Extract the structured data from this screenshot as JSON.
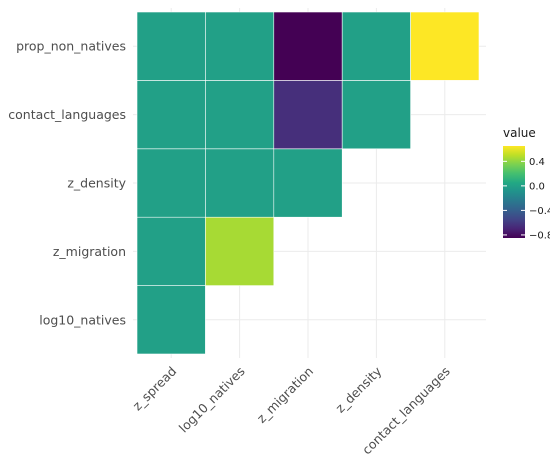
{
  "chart_data": {
    "type": "heatmap",
    "x_categories": [
      "z_spread",
      "log10_natives",
      "z_migration",
      "z_density",
      "contact_languages"
    ],
    "y_categories": [
      "log10_natives",
      "z_migration",
      "z_density",
      "contact_languages",
      "prop_non_natives"
    ],
    "cells": [
      {
        "x": "z_spread",
        "y": "log10_natives",
        "value": 0.0
      },
      {
        "x": "z_spread",
        "y": "z_migration",
        "value": 0.0
      },
      {
        "x": "log10_natives",
        "y": "z_migration",
        "value": 0.45
      },
      {
        "x": "z_spread",
        "y": "z_density",
        "value": 0.0
      },
      {
        "x": "log10_natives",
        "y": "z_density",
        "value": 0.0
      },
      {
        "x": "z_migration",
        "y": "z_density",
        "value": 0.0
      },
      {
        "x": "z_spread",
        "y": "contact_languages",
        "value": 0.0
      },
      {
        "x": "log10_natives",
        "y": "contact_languages",
        "value": 0.0
      },
      {
        "x": "z_migration",
        "y": "contact_languages",
        "value": -0.65
      },
      {
        "x": "z_density",
        "y": "contact_languages",
        "value": 0.0
      },
      {
        "x": "z_spread",
        "y": "prop_non_natives",
        "value": 0.0
      },
      {
        "x": "log10_natives",
        "y": "prop_non_natives",
        "value": 0.0
      },
      {
        "x": "z_migration",
        "y": "prop_non_natives",
        "value": -0.85
      },
      {
        "x": "z_density",
        "y": "prop_non_natives",
        "value": 0.0
      },
      {
        "x": "contact_languages",
        "y": "prop_non_natives",
        "value": 0.65
      }
    ],
    "legend": {
      "title": "value",
      "ticks": [
        0.4,
        0.0,
        -0.4,
        -0.8
      ],
      "tick_labels": [
        "0.4",
        "0.0",
        "−0.4",
        "−0.8"
      ],
      "range": [
        -0.85,
        0.65
      ],
      "placement": "right"
    },
    "color_scale": "viridis",
    "grid": true
  }
}
